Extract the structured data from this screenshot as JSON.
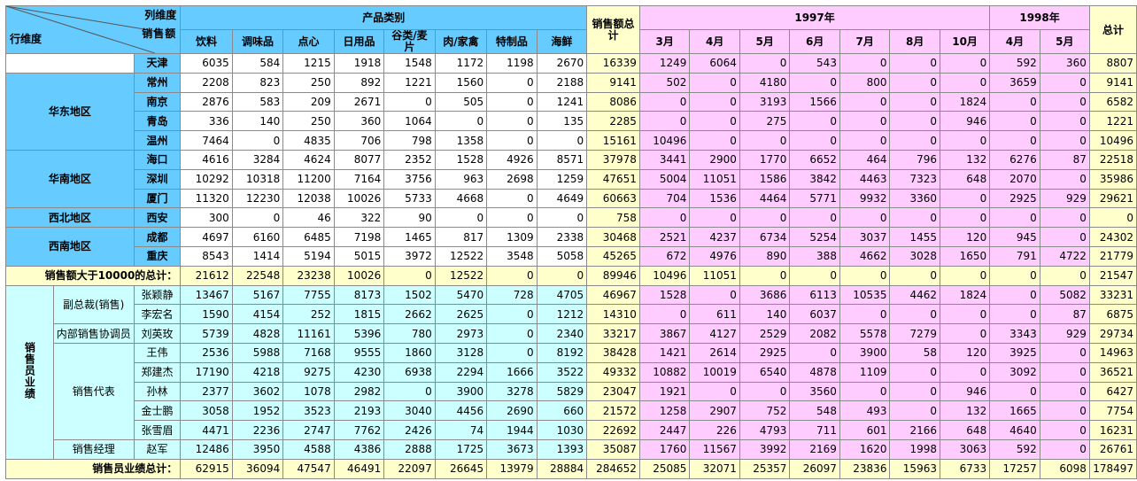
{
  "corner": {
    "col_dim": "列维度",
    "measure": "销售额",
    "row_dim": "行维度"
  },
  "header": {
    "product_category": "产品类别",
    "products": [
      "饮料",
      "调味品",
      "点心",
      "日用品",
      "谷类/麦片",
      "肉/家禽",
      "特制品",
      "海鲜"
    ],
    "sales_total": "销售额总计",
    "year1997": "1997年",
    "months1997": [
      "3月",
      "4月",
      "5月",
      "6月",
      "7月",
      "8月",
      "10月"
    ],
    "year1998": "1998年",
    "months1998": [
      "4月",
      "5月"
    ],
    "grand_total": "总计"
  },
  "region_section": {
    "groups": [
      {
        "name": "",
        "rows": [
          {
            "city": "天津",
            "p": [
              6035,
              584,
              1215,
              1918,
              1548,
              1172,
              1198,
              2670
            ],
            "s": 16339,
            "m97": [
              1249,
              6064,
              0,
              543,
              0,
              0,
              0
            ],
            "m98": [
              592,
              360
            ],
            "t": 8807
          }
        ]
      },
      {
        "name": "华东地区",
        "rows": [
          {
            "city": "常州",
            "p": [
              2208,
              823,
              250,
              892,
              1221,
              1560,
              0,
              2188
            ],
            "s": 9141,
            "m97": [
              502,
              0,
              4180,
              0,
              800,
              0,
              0
            ],
            "m98": [
              3659,
              0
            ],
            "t": 9141
          },
          {
            "city": "南京",
            "p": [
              2876,
              583,
              209,
              2671,
              0,
              505,
              0,
              1241
            ],
            "s": 8086,
            "m97": [
              0,
              0,
              3193,
              1566,
              0,
              0,
              1824
            ],
            "m98": [
              0,
              0
            ],
            "t": 6582
          },
          {
            "city": "青岛",
            "p": [
              336,
              140,
              250,
              360,
              1064,
              0,
              0,
              135
            ],
            "s": 2285,
            "m97": [
              0,
              0,
              275,
              0,
              0,
              0,
              946
            ],
            "m98": [
              0,
              0
            ],
            "t": 1221
          },
          {
            "city": "温州",
            "p": [
              7464,
              0,
              4835,
              706,
              798,
              1358,
              0,
              0
            ],
            "s": 15161,
            "m97": [
              10496,
              0,
              0,
              0,
              0,
              0,
              0
            ],
            "m98": [
              0,
              0
            ],
            "t": 10496
          }
        ]
      },
      {
        "name": "华南地区",
        "rows": [
          {
            "city": "海口",
            "p": [
              4616,
              3284,
              4624,
              8077,
              2352,
              1528,
              4926,
              8571
            ],
            "s": 37978,
            "m97": [
              3441,
              2900,
              1770,
              6652,
              464,
              796,
              132
            ],
            "m98": [
              6276,
              87
            ],
            "t": 22518
          },
          {
            "city": "深圳",
            "p": [
              10292,
              10318,
              11200,
              7164,
              3756,
              963,
              2698,
              1259
            ],
            "s": 47651,
            "m97": [
              5004,
              11051,
              1586,
              3842,
              4463,
              7323,
              648
            ],
            "m98": [
              2070,
              0
            ],
            "t": 35986
          },
          {
            "city": "厦门",
            "p": [
              11320,
              12230,
              12038,
              10026,
              5733,
              4668,
              0,
              4649
            ],
            "s": 60663,
            "m97": [
              704,
              1536,
              4464,
              5771,
              9932,
              3360,
              0
            ],
            "m98": [
              2925,
              929
            ],
            "t": 29621
          }
        ]
      },
      {
        "name": "西北地区",
        "rows": [
          {
            "city": "西安",
            "p": [
              300,
              0,
              46,
              322,
              90,
              0,
              0,
              0
            ],
            "s": 758,
            "m97": [
              0,
              0,
              0,
              0,
              0,
              0,
              0
            ],
            "m98": [
              0,
              0
            ],
            "t": 0
          }
        ]
      },
      {
        "name": "西南地区",
        "rows": [
          {
            "city": "成都",
            "p": [
              4697,
              6160,
              6485,
              7198,
              1465,
              817,
              1309,
              2338
            ],
            "s": 30468,
            "m97": [
              2521,
              4237,
              6734,
              5254,
              3037,
              1455,
              120
            ],
            "m98": [
              945,
              0
            ],
            "t": 24302
          },
          {
            "city": "重庆",
            "p": [
              8543,
              1414,
              5194,
              5015,
              3972,
              12522,
              3548,
              5058
            ],
            "s": 45265,
            "m97": [
              672,
              4976,
              890,
              388,
              4662,
              3028,
              1650
            ],
            "m98": [
              791,
              4722
            ],
            "t": 21779
          }
        ]
      }
    ],
    "subtotal": {
      "label": "销售额大于10000的总计：",
      "p": [
        21612,
        22548,
        23238,
        10026,
        0,
        12522,
        0,
        0
      ],
      "s": 89946,
      "m97": [
        10496,
        11051,
        0,
        0,
        0,
        0,
        0
      ],
      "m98": [
        0,
        0
      ],
      "t": 21547
    }
  },
  "sales_section": {
    "label": "销售员业绩",
    "groups": [
      {
        "title": "副总裁(销售)",
        "rows": [
          {
            "name": "张颖静",
            "p": [
              13467,
              5167,
              7755,
              8173,
              1502,
              5470,
              728,
              4705
            ],
            "s": 46967,
            "m97": [
              1528,
              0,
              3686,
              6113,
              10535,
              4462,
              1824
            ],
            "m98": [
              0,
              5082
            ],
            "t": 33231
          },
          {
            "name": "李宏名",
            "p": [
              1590,
              4154,
              252,
              1815,
              2662,
              2625,
              0,
              1212
            ],
            "s": 14310,
            "m97": [
              0,
              611,
              140,
              6037,
              0,
              0,
              0
            ],
            "m98": [
              0,
              87
            ],
            "t": 6875
          }
        ]
      },
      {
        "title": "内部销售协调员",
        "rows": [
          {
            "name": "刘英玫",
            "p": [
              5739,
              4828,
              11161,
              5396,
              780,
              2973,
              0,
              2340
            ],
            "s": 33217,
            "m97": [
              3867,
              4127,
              2529,
              2082,
              5578,
              7279,
              0
            ],
            "m98": [
              3343,
              929
            ],
            "t": 29734
          }
        ]
      },
      {
        "title": "销售代表",
        "rows": [
          {
            "name": "王伟",
            "p": [
              2536,
              5988,
              7168,
              9555,
              1860,
              3128,
              0,
              8192
            ],
            "s": 38428,
            "m97": [
              1421,
              2614,
              2925,
              0,
              3900,
              58,
              120
            ],
            "m98": [
              3925,
              0
            ],
            "t": 14963
          },
          {
            "name": "郑建杰",
            "p": [
              17190,
              4218,
              9275,
              4230,
              6938,
              2294,
              1666,
              3522
            ],
            "s": 49332,
            "m97": [
              10882,
              10019,
              6540,
              4878,
              1109,
              0,
              0
            ],
            "m98": [
              3092,
              0
            ],
            "t": 36521
          },
          {
            "name": "孙林",
            "p": [
              2377,
              3602,
              1078,
              2982,
              0,
              3900,
              3278,
              5829
            ],
            "s": 23047,
            "m97": [
              1921,
              0,
              0,
              3560,
              0,
              0,
              946
            ],
            "m98": [
              0,
              0
            ],
            "t": 6427
          },
          {
            "name": "金士鹏",
            "p": [
              3058,
              1952,
              3523,
              2193,
              3040,
              4456,
              2690,
              660
            ],
            "s": 21572,
            "m97": [
              1258,
              2907,
              752,
              548,
              493,
              0,
              132
            ],
            "m98": [
              1665,
              0
            ],
            "t": 7754
          },
          {
            "name": "张雪眉",
            "p": [
              4471,
              2236,
              2747,
              7762,
              2426,
              74,
              1944,
              1030
            ],
            "s": 22692,
            "m97": [
              2447,
              226,
              4793,
              711,
              601,
              2166,
              648
            ],
            "m98": [
              4640,
              0
            ],
            "t": 16231
          }
        ]
      },
      {
        "title": "销售经理",
        "rows": [
          {
            "name": "赵军",
            "p": [
              12486,
              3950,
              4588,
              4386,
              2888,
              1725,
              3673,
              1393
            ],
            "s": 35087,
            "m97": [
              1760,
              11567,
              3992,
              2169,
              1620,
              1998,
              3063
            ],
            "m98": [
              592,
              0
            ],
            "t": 26761
          }
        ]
      }
    ],
    "total": {
      "label": "销售员业绩总计：",
      "p": [
        62915,
        36094,
        47547,
        46491,
        22097,
        26645,
        13979,
        28884
      ],
      "s": 284652,
      "m97": [
        25085,
        32071,
        25357,
        26097,
        23836,
        15963,
        6733
      ],
      "m98": [
        17257,
        6098
      ],
      "t": 178497
    }
  },
  "colors": {
    "header_blue": "#66ccff",
    "cyan": "#ccffff",
    "yellow": "#ffffcc",
    "pink": "#ffccff",
    "border": "#8a8a8a"
  }
}
